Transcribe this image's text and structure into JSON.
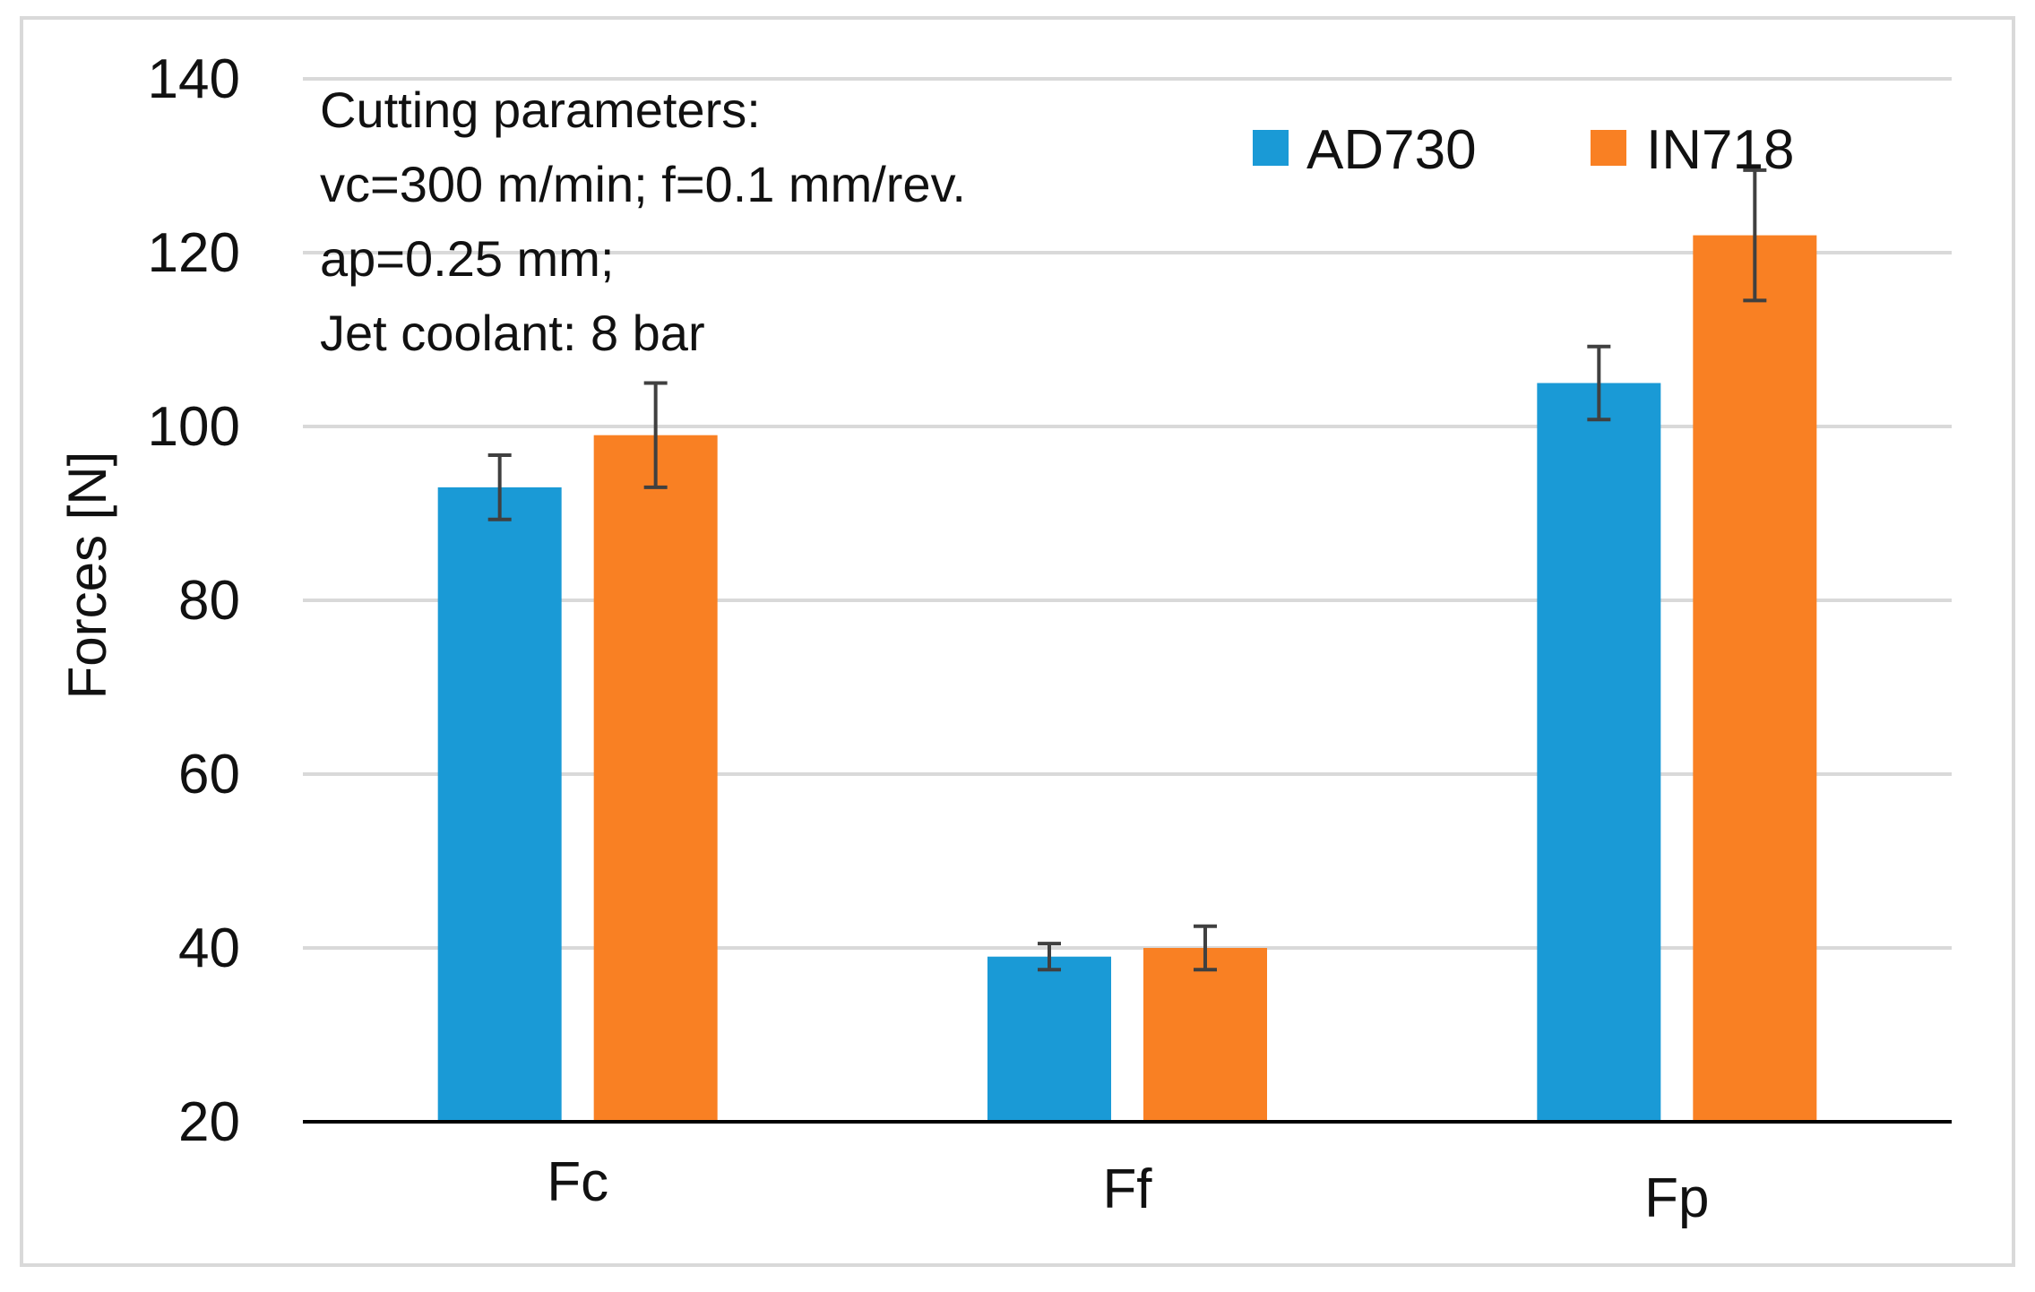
{
  "chart_data": {
    "type": "bar",
    "title": "",
    "xlabel": "",
    "ylabel": "Forces [N]",
    "ylim": [
      20,
      140
    ],
    "yticks": [
      20,
      40,
      60,
      80,
      100,
      120,
      140
    ],
    "grid": true,
    "legend_position": "top-right",
    "categories": [
      "Fc",
      "Ff",
      "Fp"
    ],
    "series": [
      {
        "name": "AD730",
        "color": "#1a9ad6",
        "values": [
          93,
          39,
          105
        ],
        "errors": [
          3.7,
          1.5,
          4.2
        ]
      },
      {
        "name": "IN718",
        "color": "#f98023",
        "values": [
          99,
          40,
          122
        ],
        "errors": [
          6,
          2.5,
          7.5
        ]
      }
    ],
    "annotation": [
      "Cutting parameters:",
      "vc=300 m/min;  f=0.1 mm/rev.",
      "ap=0.25 mm;",
      "Jet coolant: 8 bar"
    ],
    "colors": {
      "gridline": "#d9d9d9",
      "axis": "#000000",
      "error_bar": "#404040",
      "frame": "#d9d9d9"
    }
  }
}
